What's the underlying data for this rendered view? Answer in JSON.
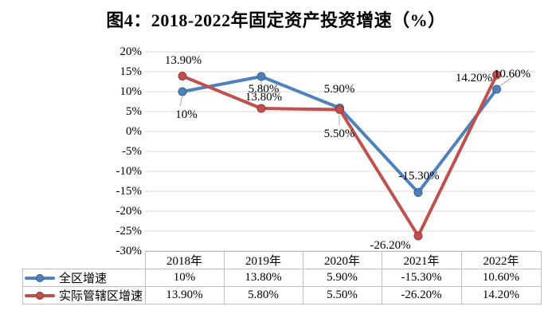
{
  "title": "图4：2018-2022年固定资产投资增速（%）",
  "colors": {
    "blue": "#4F81BD",
    "blue_dark": "#3A6186",
    "red": "#C0504D",
    "red_dark": "#953B38",
    "gridline": "#D9D9D9",
    "table_border": "#BFBFBF",
    "leader_line": "#A6A6A6",
    "text": "#000000"
  },
  "chart_data": {
    "type": "line",
    "title": "图4：2018-2022年固定资产投资增速（%）",
    "categories": [
      "2018年",
      "2019年",
      "2020年",
      "2021年",
      "2022年"
    ],
    "series": [
      {
        "name": "全区增速",
        "color_key": "blue",
        "values": [
          10,
          13.8,
          5.9,
          -15.3,
          10.6
        ],
        "labels": [
          "10%",
          "13.80%",
          "5.90%",
          "-15.30%",
          "10.60%"
        ]
      },
      {
        "name": "实际管辖区增速",
        "color_key": "red",
        "values": [
          13.9,
          5.8,
          5.5,
          -26.2,
          14.2
        ],
        "labels": [
          "13.90%",
          "5.80%",
          "5.50%",
          "-26.20%",
          "14.20%"
        ]
      }
    ],
    "y_axis": {
      "min": -30,
      "max": 20,
      "step": 5,
      "tick_labels": [
        "20%",
        "15%",
        "10%",
        "5%",
        "0%",
        "-5%",
        "-10%",
        "-15%",
        "-20%",
        "-25%",
        "-30%"
      ]
    },
    "grid": true,
    "legend_position": "bottom-table"
  }
}
